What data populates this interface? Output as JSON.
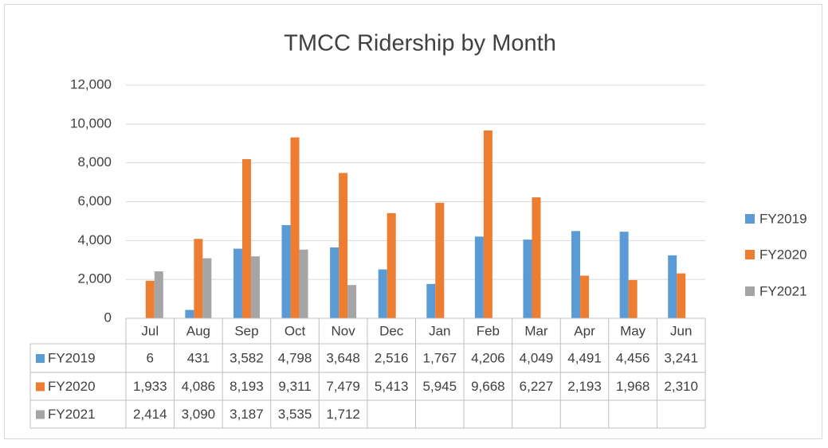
{
  "chart_data": {
    "type": "bar",
    "title": "TMCC Ridership by Month",
    "categories": [
      "Jul",
      "Aug",
      "Sep",
      "Oct",
      "Nov",
      "Dec",
      "Jan",
      "Feb",
      "Mar",
      "Apr",
      "May",
      "Jun"
    ],
    "series": [
      {
        "name": "FY2019",
        "color": "#5b9bd5",
        "values": [
          6,
          431,
          3582,
          4798,
          3648,
          2516,
          1767,
          4206,
          4049,
          4491,
          4456,
          3241
        ],
        "value_labels": [
          "6",
          "431",
          "3,582",
          "4,798",
          "3,648",
          "2,516",
          "1,767",
          "4,206",
          "4,049",
          "4,491",
          "4,456",
          "3,241"
        ]
      },
      {
        "name": "FY2020",
        "color": "#ed7d31",
        "values": [
          1933,
          4086,
          8193,
          9311,
          7479,
          5413,
          5945,
          9668,
          6227,
          2193,
          1968,
          2310
        ],
        "value_labels": [
          "1,933",
          "4,086",
          "8,193",
          "9,311",
          "7,479",
          "5,413",
          "5,945",
          "9,668",
          "6,227",
          "2,193",
          "1,968",
          "2,310"
        ]
      },
      {
        "name": "FY2021",
        "color": "#a5a5a5",
        "values": [
          2414,
          3090,
          3187,
          3535,
          1712,
          null,
          null,
          null,
          null,
          null,
          null,
          null
        ],
        "value_labels": [
          "2,414",
          "3,090",
          "3,187",
          "3,535",
          "1,712",
          null,
          null,
          null,
          null,
          null,
          null,
          null
        ]
      }
    ],
    "ylim": [
      0,
      12000
    ],
    "yticks": [
      0,
      {
        "value": 2000,
        "label": "2,000"
      },
      {
        "value": 4000,
        "label": "4,000"
      },
      {
        "value": 6000,
        "label": "6,000"
      },
      {
        "value": 8000,
        "label": "8,000"
      },
      {
        "value": 10000,
        "label": "10,000"
      },
      {
        "value": 12000,
        "label": "12,000"
      }
    ],
    "grid": true,
    "legend": "right"
  }
}
